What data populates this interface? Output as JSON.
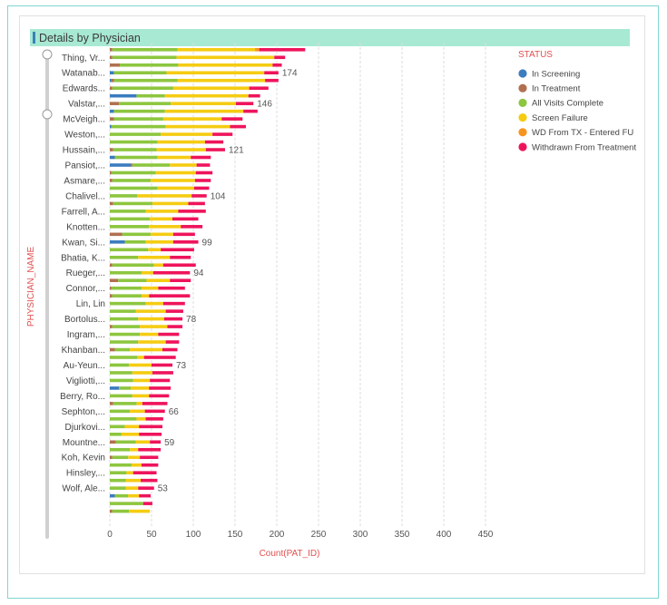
{
  "panel": {
    "title": "Details by Physician"
  },
  "colors": {
    "In Screening": "#3c7cbf",
    "In Treatment": "#b07050",
    "All Visits Complete": "#8dc63f",
    "Screen Failure": "#f5cc12",
    "WD From TX - Entered FU": "#f7941d",
    "Withdrawn From Treatment": "#ee145b"
  },
  "chart_data": {
    "type": "bar",
    "orientation": "horizontal",
    "stacked": true,
    "title": "Details by Physician",
    "xlabel": "Count(PAT_ID)",
    "ylabel": "PHYSICIAN_NAME",
    "xlim": [
      0,
      460
    ],
    "xticks": [
      "0",
      "50",
      "100",
      "150",
      "200",
      "250",
      "300",
      "350",
      "400",
      "450"
    ],
    "grid": true,
    "legend_title": "STATUS",
    "legend_position": "right",
    "series_names": [
      "In Screening",
      "In Treatment",
      "All Visits Complete",
      "Screen Failure",
      "WD From TX - Entered FU",
      "Withdrawn From Treatment"
    ],
    "category_labels": [
      {
        "index": 1,
        "text": "Thing, Vr..."
      },
      {
        "index": 3,
        "text": "Watanab..."
      },
      {
        "index": 5,
        "text": "Edwards..."
      },
      {
        "index": 7,
        "text": "Valstar,..."
      },
      {
        "index": 9,
        "text": "McVeigh..."
      },
      {
        "index": 11,
        "text": "Weston,..."
      },
      {
        "index": 13,
        "text": "Hussain,..."
      },
      {
        "index": 15,
        "text": "Pansiot,..."
      },
      {
        "index": 17,
        "text": "Asmare,..."
      },
      {
        "index": 19,
        "text": "Chalivel..."
      },
      {
        "index": 21,
        "text": "Farrell, A..."
      },
      {
        "index": 23,
        "text": "Knotten..."
      },
      {
        "index": 25,
        "text": "Kwan, Si..."
      },
      {
        "index": 27,
        "text": "Bhatia, K..."
      },
      {
        "index": 29,
        "text": "Rueger,..."
      },
      {
        "index": 31,
        "text": "Connor,..."
      },
      {
        "index": 33,
        "text": "Lin, Lin"
      },
      {
        "index": 35,
        "text": "Bortolus..."
      },
      {
        "index": 37,
        "text": "Ingram,..."
      },
      {
        "index": 39,
        "text": "Khanban..."
      },
      {
        "index": 41,
        "text": "Au-Yeun..."
      },
      {
        "index": 43,
        "text": "Vigliotti,..."
      },
      {
        "index": 45,
        "text": "Berry, Ro..."
      },
      {
        "index": 47,
        "text": "Sephton,..."
      },
      {
        "index": 49,
        "text": "Djurkovi..."
      },
      {
        "index": 51,
        "text": "Mountne..."
      },
      {
        "index": 53,
        "text": "Koh, Kevin"
      },
      {
        "index": 55,
        "text": "Hinsley,..."
      },
      {
        "index": 57,
        "text": "Wolf, Ale..."
      }
    ],
    "data_labels": [
      {
        "index": 3,
        "text": "174"
      },
      {
        "index": 7,
        "text": "146"
      },
      {
        "index": 13,
        "text": "121"
      },
      {
        "index": 19,
        "text": "104"
      },
      {
        "index": 25,
        "text": "99"
      },
      {
        "index": 29,
        "text": "94"
      },
      {
        "index": 35,
        "text": "78"
      },
      {
        "index": 41,
        "text": "73"
      },
      {
        "index": 47,
        "text": "66"
      },
      {
        "index": 51,
        "text": "59"
      },
      {
        "index": 57,
        "text": "53"
      }
    ],
    "bars": [
      [
        0,
        3,
        78,
        93,
        5,
        55
      ],
      [
        0,
        3,
        77,
        117,
        0,
        13
      ],
      [
        0,
        12,
        70,
        113,
        0,
        11
      ],
      [
        5,
        0,
        63,
        117,
        0,
        17
      ],
      [
        2,
        3,
        76,
        105,
        0,
        16
      ],
      [
        0,
        3,
        73,
        91,
        0,
        23
      ],
      [
        32,
        0,
        34,
        100,
        0,
        14
      ],
      [
        0,
        11,
        62,
        78,
        0,
        21
      ],
      [
        5,
        0,
        61,
        94,
        0,
        17
      ],
      [
        0,
        5,
        59,
        70,
        0,
        25
      ],
      [
        2,
        0,
        65,
        77,
        0,
        19
      ],
      [
        0,
        0,
        61,
        62,
        0,
        24
      ],
      [
        0,
        0,
        57,
        57,
        0,
        22
      ],
      [
        0,
        4,
        52,
        59,
        0,
        23
      ],
      [
        6,
        0,
        51,
        40,
        0,
        24
      ],
      [
        25,
        2,
        45,
        32,
        0,
        16
      ],
      [
        0,
        2,
        53,
        48,
        0,
        20
      ],
      [
        0,
        3,
        46,
        53,
        0,
        19
      ],
      [
        0,
        0,
        57,
        44,
        0,
        18
      ],
      [
        0,
        0,
        33,
        65,
        0,
        18
      ],
      [
        0,
        4,
        47,
        43,
        0,
        20
      ],
      [
        0,
        0,
        43,
        39,
        0,
        33
      ],
      [
        0,
        0,
        48,
        27,
        0,
        31
      ],
      [
        0,
        0,
        47,
        38,
        0,
        26
      ],
      [
        0,
        15,
        34,
        27,
        0,
        26
      ],
      [
        18,
        0,
        25,
        33,
        0,
        30
      ],
      [
        0,
        0,
        46,
        15,
        0,
        40
      ],
      [
        0,
        0,
        34,
        38,
        0,
        25
      ],
      [
        0,
        3,
        50,
        11,
        0,
        39
      ],
      [
        0,
        0,
        38,
        14,
        0,
        44
      ],
      [
        0,
        10,
        34,
        28,
        0,
        25
      ],
      [
        0,
        2,
        36,
        20,
        0,
        32
      ],
      [
        0,
        3,
        35,
        9,
        0,
        49
      ],
      [
        0,
        0,
        43,
        21,
        0,
        26
      ],
      [
        0,
        0,
        31,
        36,
        0,
        21
      ],
      [
        0,
        0,
        34,
        31,
        0,
        22
      ],
      [
        0,
        3,
        33,
        33,
        0,
        18
      ],
      [
        0,
        0,
        36,
        22,
        0,
        25
      ],
      [
        0,
        0,
        34,
        33,
        0,
        16
      ],
      [
        0,
        6,
        18,
        39,
        0,
        18
      ],
      [
        0,
        0,
        33,
        8,
        0,
        38
      ],
      [
        0,
        0,
        23,
        27,
        0,
        25
      ],
      [
        0,
        0,
        27,
        24,
        0,
        25
      ],
      [
        0,
        0,
        28,
        20,
        0,
        24
      ],
      [
        11,
        0,
        14,
        22,
        0,
        26
      ],
      [
        0,
        0,
        27,
        20,
        0,
        24
      ],
      [
        0,
        4,
        28,
        7,
        0,
        30
      ],
      [
        0,
        0,
        24,
        18,
        0,
        24
      ],
      [
        0,
        0,
        32,
        11,
        0,
        21
      ],
      [
        0,
        0,
        18,
        17,
        0,
        28
      ],
      [
        0,
        0,
        14,
        21,
        0,
        27
      ],
      [
        0,
        7,
        24,
        17,
        0,
        13
      ],
      [
        0,
        0,
        24,
        10,
        0,
        27
      ],
      [
        0,
        3,
        19,
        14,
        0,
        22
      ],
      [
        0,
        0,
        26,
        12,
        0,
        20
      ],
      [
        0,
        0,
        20,
        8,
        0,
        28
      ],
      [
        0,
        0,
        19,
        18,
        0,
        20
      ],
      [
        0,
        0,
        19,
        15,
        0,
        19
      ],
      [
        6,
        0,
        16,
        13,
        0,
        14
      ],
      [
        0,
        0,
        40,
        0,
        0,
        11
      ],
      [
        0,
        3,
        20,
        25,
        0,
        0
      ]
    ]
  }
}
